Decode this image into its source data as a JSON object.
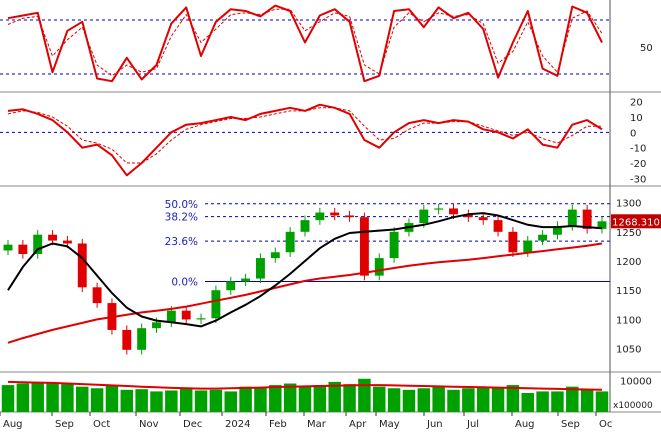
{
  "colors": {
    "background": "#ffffff",
    "oscillator": "#e00000",
    "up_candle": "#00a000",
    "down_candle": "#e00000",
    "ma_short": "#000000",
    "ma_long": "#e00000",
    "volume": "#00a000",
    "fib_line": "#0000c0",
    "last_price_box": "#c00000"
  },
  "chart_data": [
    {
      "type": "line",
      "panel": "stochastic",
      "y_tick_labels": [
        "50"
      ],
      "ylim": [
        0,
        100
      ],
      "reference_levels": [
        20,
        80
      ],
      "x": [
        "Aug",
        "Aug",
        "Sep",
        "Sep",
        "Sep",
        "Oct",
        "Oct",
        "Oct",
        "Nov",
        "Nov",
        "Nov",
        "Dec",
        "Dec",
        "Dec",
        "Jan",
        "Jan",
        "Jan",
        "Feb",
        "Feb",
        "Feb",
        "Mar",
        "Mar",
        "Mar",
        "Apr",
        "Apr",
        "Apr",
        "May",
        "May",
        "May",
        "Jun",
        "Jun",
        "Jun",
        "Jul",
        "Jul",
        "Jul",
        "Aug",
        "Aug",
        "Aug",
        "Sep",
        "Sep",
        "Sep"
      ],
      "series": [
        {
          "values": [
            82,
            85,
            88,
            22,
            68,
            78,
            15,
            12,
            38,
            14,
            30,
            76,
            94,
            40,
            78,
            92,
            90,
            84,
            96,
            90,
            55,
            85,
            92,
            78,
            12,
            18,
            90,
            92,
            72,
            94,
            82,
            88,
            70,
            16,
            55,
            90,
            26,
            18,
            95,
            88,
            55
          ]
        },
        {
          "values": [
            75,
            82,
            84,
            40,
            58,
            72,
            30,
            18,
            30,
            22,
            26,
            62,
            86,
            55,
            70,
            86,
            88,
            86,
            92,
            92,
            68,
            78,
            88,
            84,
            30,
            20,
            72,
            88,
            78,
            88,
            84,
            86,
            76,
            32,
            45,
            78,
            40,
            22,
            82,
            90,
            65
          ]
        }
      ]
    },
    {
      "type": "line",
      "panel": "macd",
      "y_tick_labels": [
        "20",
        "10",
        "0",
        "-10",
        "-20",
        "-30"
      ],
      "ylim": [
        -35,
        25
      ],
      "reference_levels": [
        0
      ],
      "x": [
        "Aug",
        "Aug",
        "Sep",
        "Sep",
        "Sep",
        "Oct",
        "Oct",
        "Oct",
        "Nov",
        "Nov",
        "Nov",
        "Dec",
        "Dec",
        "Dec",
        "Jan",
        "Jan",
        "Jan",
        "Feb",
        "Feb",
        "Feb",
        "Mar",
        "Mar",
        "Mar",
        "Apr",
        "Apr",
        "Apr",
        "May",
        "May",
        "May",
        "Jun",
        "Jun",
        "Jun",
        "Jul",
        "Jul",
        "Jul",
        "Aug",
        "Aug",
        "Aug",
        "Sep",
        "Sep",
        "Sep"
      ],
      "series": [
        {
          "values": [
            14,
            15,
            12,
            8,
            0,
            -10,
            -8,
            -15,
            -28,
            -20,
            -10,
            0,
            5,
            6,
            8,
            10,
            8,
            12,
            14,
            16,
            14,
            18,
            16,
            12,
            -5,
            -10,
            0,
            6,
            8,
            6,
            8,
            7,
            2,
            0,
            -4,
            2,
            -8,
            -10,
            5,
            8,
            2
          ]
        },
        {
          "values": [
            12,
            14,
            13,
            10,
            4,
            -5,
            -7,
            -11,
            -20,
            -20,
            -14,
            -5,
            2,
            5,
            7,
            9,
            9,
            10,
            12,
            14,
            14,
            16,
            16,
            14,
            4,
            -5,
            -4,
            2,
            6,
            6,
            7,
            7,
            4,
            1,
            -2,
            0,
            -4,
            -7,
            -2,
            4,
            4
          ]
        }
      ]
    },
    {
      "type": "candlestick",
      "panel": "price",
      "y_tick_labels": [
        "1300",
        "1250",
        "1200",
        "1150",
        "1100",
        "1050"
      ],
      "ylim": [
        1010,
        1325
      ],
      "x_tick_labels": [
        "Aug",
        "Sep",
        "Oct",
        "Nov",
        "Dec",
        "2024",
        "Feb",
        "Mar",
        "Apr",
        "May",
        "Jun",
        "Jul",
        "Aug",
        "Sep",
        "Oc"
      ],
      "fib_levels": [
        {
          "label": "50.0%",
          "value": 1298
        },
        {
          "label": "38.2%",
          "value": 1276
        },
        {
          "label": "23.6%",
          "value": 1234
        },
        {
          "label": "0.0%",
          "value": 1165
        }
      ],
      "last_price": "1268.310",
      "x": [
        "Aug",
        "Aug",
        "Sep",
        "Sep",
        "Sep",
        "Oct",
        "Oct",
        "Oct",
        "Nov",
        "Nov",
        "Nov",
        "Dec",
        "Dec",
        "Dec",
        "Jan",
        "Jan",
        "Jan",
        "Feb",
        "Feb",
        "Feb",
        "Mar",
        "Mar",
        "Mar",
        "Apr",
        "Apr",
        "Apr",
        "May",
        "May",
        "May",
        "Jun",
        "Jun",
        "Jun",
        "Jul",
        "Jul",
        "Jul",
        "Aug",
        "Aug",
        "Aug",
        "Sep",
        "Sep",
        "Sep"
      ],
      "close": [
        1228,
        1212,
        1245,
        1235,
        1230,
        1155,
        1128,
        1082,
        1048,
        1085,
        1095,
        1115,
        1100,
        1102,
        1150,
        1165,
        1170,
        1205,
        1215,
        1250,
        1270,
        1283,
        1278,
        1275,
        1175,
        1205,
        1250,
        1265,
        1288,
        1290,
        1280,
        1275,
        1270,
        1250,
        1215,
        1235,
        1245,
        1260,
        1288,
        1255,
        1268
      ],
      "ma_short": [
        1150,
        1190,
        1220,
        1230,
        1225,
        1205,
        1175,
        1145,
        1120,
        1105,
        1098,
        1095,
        1092,
        1088,
        1098,
        1112,
        1125,
        1140,
        1158,
        1178,
        1200,
        1222,
        1238,
        1248,
        1250,
        1252,
        1254,
        1258,
        1262,
        1268,
        1275,
        1280,
        1282,
        1278,
        1270,
        1262,
        1258,
        1258,
        1260,
        1258,
        1256
      ],
      "ma_long": [
        1060,
        1068,
        1075,
        1082,
        1088,
        1094,
        1100,
        1104,
        1108,
        1112,
        1115,
        1118,
        1122,
        1127,
        1132,
        1137,
        1142,
        1148,
        1154,
        1160,
        1166,
        1170,
        1173,
        1176,
        1180,
        1184,
        1188,
        1192,
        1195,
        1198,
        1200,
        1202,
        1205,
        1208,
        1211,
        1214,
        1217,
        1220,
        1223,
        1226,
        1230
      ]
    },
    {
      "type": "bar",
      "panel": "volume",
      "y_tick_labels": [
        "10000"
      ],
      "unit_label": "x100000",
      "ylim": [
        0,
        12000
      ],
      "x": [
        "Aug",
        "Aug",
        "Sep",
        "Sep",
        "Sep",
        "Oct",
        "Oct",
        "Oct",
        "Nov",
        "Nov",
        "Nov",
        "Dec",
        "Dec",
        "Dec",
        "Jan",
        "Jan",
        "Jan",
        "Feb",
        "Feb",
        "Feb",
        "Mar",
        "Mar",
        "Mar",
        "Apr",
        "Apr",
        "Apr",
        "May",
        "May",
        "May",
        "Jun",
        "Jun",
        "Jun",
        "Jul",
        "Jul",
        "Jul",
        "Aug",
        "Aug",
        "Aug",
        "Sep",
        "Sep",
        "Sep"
      ],
      "values": [
        8500,
        9000,
        9500,
        9000,
        8800,
        8000,
        7500,
        8500,
        7000,
        7200,
        6500,
        6800,
        7500,
        6800,
        7000,
        6500,
        8000,
        7500,
        8500,
        9000,
        8000,
        8500,
        9500,
        8800,
        10500,
        8000,
        7500,
        7000,
        7500,
        8000,
        7000,
        7500,
        8000,
        7500,
        8500,
        6000,
        6500,
        6500,
        8000,
        7000,
        6500
      ],
      "ma": [
        9500,
        9400,
        9300,
        9200,
        9000,
        8800,
        8600,
        8400,
        8200,
        8000,
        7800,
        7600,
        7500,
        7400,
        7400,
        7500,
        7600,
        7700,
        7900,
        8000,
        8100,
        8200,
        8300,
        8400,
        8500,
        8500,
        8400,
        8300,
        8200,
        8100,
        8000,
        7900,
        7800,
        7700,
        7600,
        7500,
        7400,
        7300,
        7200,
        7100,
        7000
      ]
    }
  ]
}
